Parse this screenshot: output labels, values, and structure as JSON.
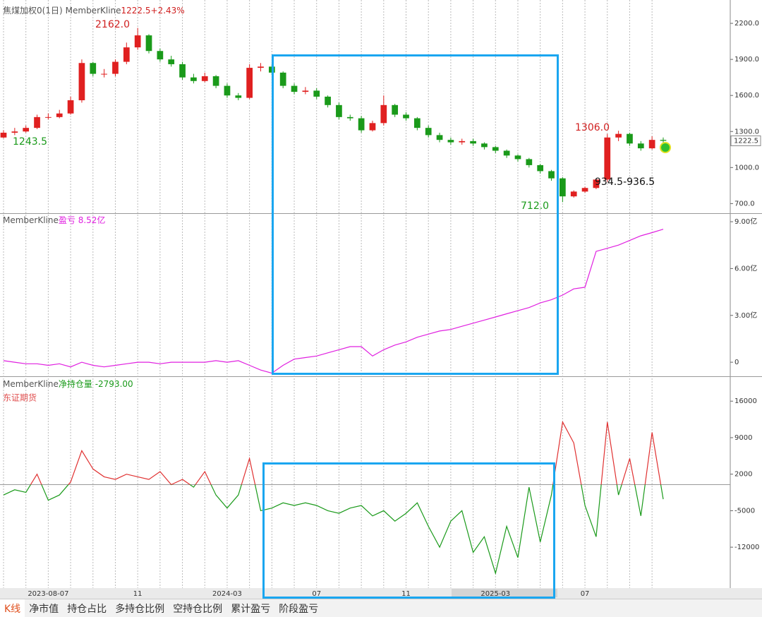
{
  "chart_data": [
    {
      "type": "candlestick",
      "title": "焦煤加权0(1日)",
      "indicator": "MemberKline",
      "quote": "1222.5+2.43%",
      "open": [
        1250,
        1290,
        1300,
        1330,
        1420,
        1420,
        1450,
        1560,
        1870,
        1780,
        1780,
        1880,
        2000,
        2100,
        1970,
        1900,
        1860,
        1750,
        1720,
        1760,
        1680,
        1600,
        1580,
        1830,
        1840,
        1790,
        1680,
        1630,
        1640,
        1590,
        1520,
        1420,
        1410,
        1310,
        1370,
        1520,
        1440,
        1410,
        1330,
        1270,
        1230,
        1210,
        1220,
        1200,
        1170,
        1140,
        1100,
        1070,
        1020,
        970,
        910,
        760,
        800,
        830,
        900,
        1250,
        1280,
        1200,
        1160,
        1230
      ],
      "high": [
        1310,
        1330,
        1350,
        1440,
        1450,
        1480,
        1590,
        1900,
        1880,
        1820,
        1900,
        2040,
        2162,
        2110,
        1990,
        1930,
        1880,
        1780,
        1790,
        1770,
        1700,
        1620,
        1860,
        1870,
        1860,
        1800,
        1700,
        1670,
        1660,
        1600,
        1540,
        1440,
        1430,
        1390,
        1600,
        1530,
        1460,
        1420,
        1350,
        1290,
        1250,
        1240,
        1240,
        1210,
        1180,
        1150,
        1110,
        1080,
        1030,
        980,
        920,
        810,
        840,
        910,
        1280,
        1306,
        1290,
        1220,
        1260,
        1250
      ],
      "low": [
        1243.5,
        1270,
        1290,
        1320,
        1400,
        1410,
        1440,
        1540,
        1760,
        1750,
        1760,
        1860,
        1980,
        1950,
        1880,
        1840,
        1730,
        1700,
        1710,
        1660,
        1580,
        1560,
        1570,
        1800,
        1770,
        1660,
        1610,
        1610,
        1570,
        1500,
        1400,
        1390,
        1290,
        1300,
        1350,
        1420,
        1390,
        1310,
        1250,
        1210,
        1190,
        1190,
        1180,
        1150,
        1120,
        1080,
        1050,
        1000,
        950,
        890,
        712,
        750,
        790,
        820,
        880,
        1220,
        1180,
        1140,
        1150,
        1190
      ],
      "close": [
        1290,
        1300,
        1330,
        1420,
        1420,
        1450,
        1560,
        1870,
        1780,
        1780,
        1880,
        2000,
        2100,
        1970,
        1900,
        1860,
        1750,
        1720,
        1760,
        1680,
        1600,
        1580,
        1830,
        1840,
        1790,
        1680,
        1630,
        1640,
        1590,
        1520,
        1420,
        1410,
        1310,
        1370,
        1520,
        1440,
        1410,
        1330,
        1270,
        1230,
        1210,
        1220,
        1200,
        1170,
        1140,
        1100,
        1070,
        1020,
        970,
        910,
        760,
        800,
        830,
        900,
        1250,
        1280,
        1200,
        1160,
        1230,
        1222.5
      ],
      "up_color": "#e02020",
      "down_color": "#1a9a1a",
      "annotations": [
        "2162.0",
        "1243.5",
        "712.0",
        "1306.0",
        "934.5-936.5"
      ],
      "ylim": [
        620,
        2365
      ],
      "yticks": [
        {
          "value": 2200,
          "label": "2200.0"
        },
        {
          "value": 1900,
          "label": "1900.0"
        },
        {
          "value": 1600,
          "label": "1600.0"
        },
        {
          "value": 1300,
          "label": "1300.0"
        },
        {
          "value": 1000,
          "label": "1000.0"
        },
        {
          "value": 700,
          "label": "700.0"
        }
      ]
    },
    {
      "type": "line",
      "title": "MemberKline",
      "subtitle": "盈亏 8.52亿",
      "series": [
        {
          "name": "盈亏",
          "color": "#e020e0",
          "values": [
            0.1,
            0.0,
            -0.1,
            -0.1,
            -0.2,
            -0.1,
            -0.3,
            0.0,
            -0.2,
            -0.3,
            -0.2,
            -0.1,
            0.0,
            0.0,
            -0.1,
            0.0,
            0.0,
            0.0,
            0.0,
            0.1,
            0.0,
            0.1,
            -0.2,
            -0.5,
            -0.7,
            -0.2,
            0.2,
            0.3,
            0.4,
            0.6,
            0.8,
            1.0,
            1.0,
            0.4,
            0.8,
            1.1,
            1.3,
            1.6,
            1.8,
            2.0,
            2.1,
            2.3,
            2.5,
            2.7,
            2.9,
            3.1,
            3.3,
            3.5,
            3.8,
            4.0,
            4.3,
            4.7,
            4.8,
            7.1,
            7.3,
            7.5,
            7.8,
            8.1,
            8.3,
            8.52
          ]
        }
      ],
      "ylim": [
        -0.9,
        9.5
      ],
      "yticks": [
        {
          "value": 9,
          "label": "9.00亿"
        },
        {
          "value": 6,
          "label": "6.00亿"
        },
        {
          "value": 3,
          "label": "3.00亿"
        },
        0
      ]
    },
    {
      "type": "line",
      "title": "MemberKline",
      "subtitle": "净持仓量 -2793.00",
      "note": "东证期货",
      "categories": [
        null,
        null,
        null,
        null,
        "2023-08-07",
        null,
        null,
        null,
        null,
        null,
        null,
        null,
        "11",
        null,
        null,
        null,
        null,
        null,
        null,
        null,
        "2024-03",
        null,
        null,
        null,
        null,
        null,
        null,
        null,
        "07",
        null,
        null,
        null,
        null,
        null,
        null,
        null,
        "11",
        null,
        null,
        null,
        null,
        null,
        null,
        null,
        "2025-03",
        null,
        null,
        null,
        null,
        null,
        null,
        null,
        "07",
        null,
        null,
        null,
        null,
        null,
        null,
        null
      ],
      "series": [
        {
          "name": "净持仓量",
          "color": "#1a9a1a",
          "values": [
            -2000,
            -1000,
            -1500,
            2000,
            -3000,
            -2000,
            500,
            6500,
            3000,
            1500,
            1000,
            2000,
            1500,
            1000,
            2500,
            0,
            1000,
            -500,
            2500,
            -2000,
            -4500,
            -2000,
            5000,
            -5000,
            -4500,
            -3500,
            -4000,
            -3500,
            -4000,
            -5000,
            -5500,
            -4500,
            -4000,
            -6000,
            -5000,
            -7000,
            -5500,
            -3500,
            -8000,
            -12000,
            -7000,
            -5000,
            -13000,
            -10000,
            -17000,
            -8000,
            -14000,
            -500,
            -11000,
            -2000,
            12000,
            8000,
            -4000,
            -10000,
            12000,
            -2000,
            5000,
            -6000,
            10000,
            -2793
          ]
        }
      ],
      "positive_color": "#e03030",
      "ylim": [
        -19700,
        20500
      ],
      "yticks": [
        16000,
        9000,
        2000,
        -5000,
        -12000
      ]
    }
  ],
  "tabs": [
    "K线",
    "净市值",
    "持仓占比",
    "多持仓比例",
    "空持仓比例",
    "累计盈亏",
    "阶段盈亏"
  ]
}
